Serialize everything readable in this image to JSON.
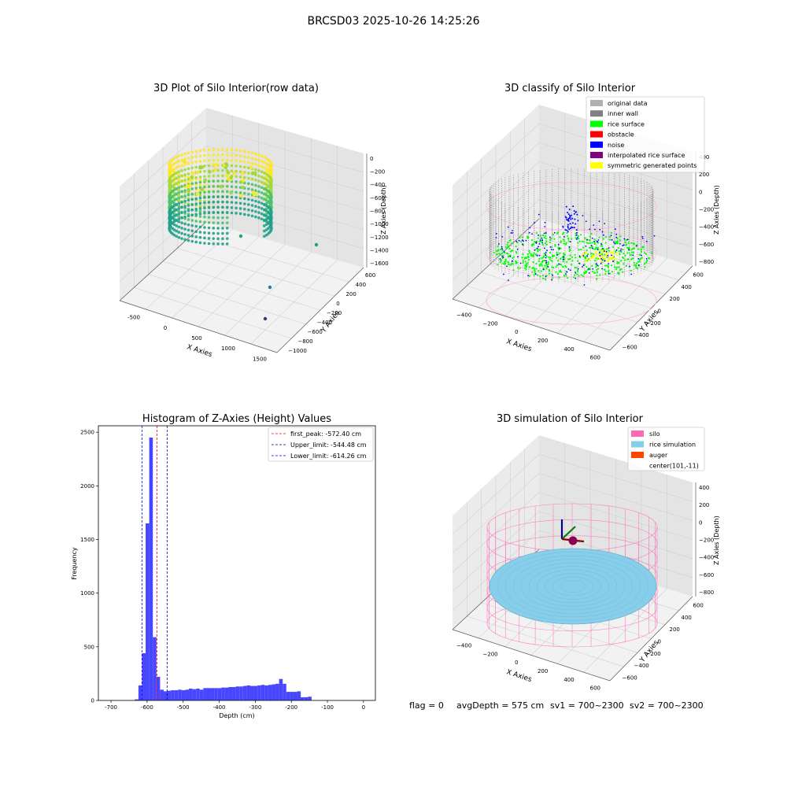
{
  "figure": {
    "suptitle": "BRCSD03 2025-10-26 14:25:26",
    "footer": {
      "flag": "flag = 0",
      "avg": "avgDepth = 575 cm",
      "sv1": "sv1 = 700~2300",
      "sv2": "sv2 = 700~2300"
    }
  },
  "chart_data": [
    {
      "type": "scatter",
      "title": "3D Plot of Silo Interior(row data)",
      "xlabel": "X Axies",
      "ylabel": "Y Axies",
      "zlabel": "Z Axies (Depth)",
      "xticks": [
        "-500",
        "0",
        "500",
        "1000",
        "1500"
      ],
      "yticks": [
        "600",
        "400",
        "200",
        "0",
        "−200",
        "−400",
        "−600",
        "−800",
        "−1000"
      ],
      "zticks": [
        "0",
        "−200",
        "−400",
        "−600",
        "−800",
        "−1000",
        "−1200",
        "−1400",
        "−1600"
      ],
      "colormap": [
        "#fde725",
        "#a0da39",
        "#4ac16d",
        "#1fa187",
        "#277f8e",
        "#365c8d",
        "#46327e",
        "#440154"
      ]
    },
    {
      "type": "scatter",
      "title": "3D classify of Silo Interior",
      "xlabel": "X Axies",
      "ylabel": "Y Axies",
      "zlabel": "Z Axies (Depth)",
      "xticks": [
        "−400",
        "−200",
        "0",
        "200",
        "400",
        "600"
      ],
      "yticks": [
        "600",
        "400",
        "200",
        "0",
        "−200",
        "−400",
        "−600"
      ],
      "zticks": [
        "400",
        "200",
        "0",
        "−200",
        "−400",
        "−600",
        "−800"
      ],
      "legend_position": "top-right",
      "legend": [
        {
          "label": "original data",
          "color": "#b0b0b0"
        },
        {
          "label": "inner wall",
          "color": "#808080"
        },
        {
          "label": "rice surface",
          "color": "#00ff00"
        },
        {
          "label": "obstacle",
          "color": "#ff0000"
        },
        {
          "label": "noise",
          "color": "#0000ff"
        },
        {
          "label": "interpolated rice surface",
          "color": "#800080"
        },
        {
          "label": "symmetric generated points",
          "color": "#ffff00"
        }
      ]
    },
    {
      "type": "bar",
      "title": "Histogram of Z-Axies (Height) Values",
      "xlabel": "Depth (cm)",
      "ylabel": "Frequency",
      "xlim": [
        -735,
        33
      ],
      "ylim": [
        0,
        2560
      ],
      "xticks": [
        -700,
        -600,
        -500,
        -400,
        -300,
        -200,
        -100,
        0
      ],
      "yticks": [
        0,
        500,
        1000,
        1500,
        2000,
        2500
      ],
      "bin_start": -634,
      "bin_width": 10,
      "values": [
        10,
        140,
        440,
        1650,
        2450,
        590,
        220,
        100,
        85,
        90,
        95,
        95,
        100,
        95,
        100,
        110,
        105,
        110,
        100,
        115,
        115,
        115,
        115,
        115,
        120,
        120,
        125,
        125,
        130,
        130,
        135,
        140,
        135,
        135,
        140,
        145,
        140,
        145,
        150,
        155,
        200,
        155,
        80,
        80,
        80,
        85,
        30,
        30,
        35
      ],
      "bar_color": "#4747ff",
      "legend_position": "top-right",
      "lines": [
        {
          "label": "first_peak: -572.40 cm",
          "x": -572.4,
          "color": "#ff0000"
        },
        {
          "label": "Upper_limit: -544.48 cm",
          "x": -544.48,
          "color": "#00008b"
        },
        {
          "label": "Lower_limit: -614.26 cm",
          "x": -614.26,
          "color": "#0000ff"
        }
      ]
    },
    {
      "type": "surface",
      "title": "3D simulation of Silo Interior",
      "xlabel": "X Axies",
      "ylabel": "Y Axies",
      "zlabel": "Z Axies (Depth)",
      "xticks": [
        "−400",
        "−200",
        "0",
        "200",
        "400",
        "600"
      ],
      "yticks": [
        "600",
        "400",
        "200",
        "0",
        "−200",
        "−400",
        "−600"
      ],
      "zticks": [
        "400",
        "200",
        "0",
        "−200",
        "−400",
        "−600",
        "−800"
      ],
      "legend_position": "top-right",
      "legend": [
        {
          "label": "silo",
          "color": "#ff69b4"
        },
        {
          "label": "rice simulation",
          "color": "#87ceeb"
        },
        {
          "label": "auger",
          "color": "#ff4500"
        },
        {
          "label": "center(101,-11)",
          "color": ""
        }
      ]
    }
  ]
}
